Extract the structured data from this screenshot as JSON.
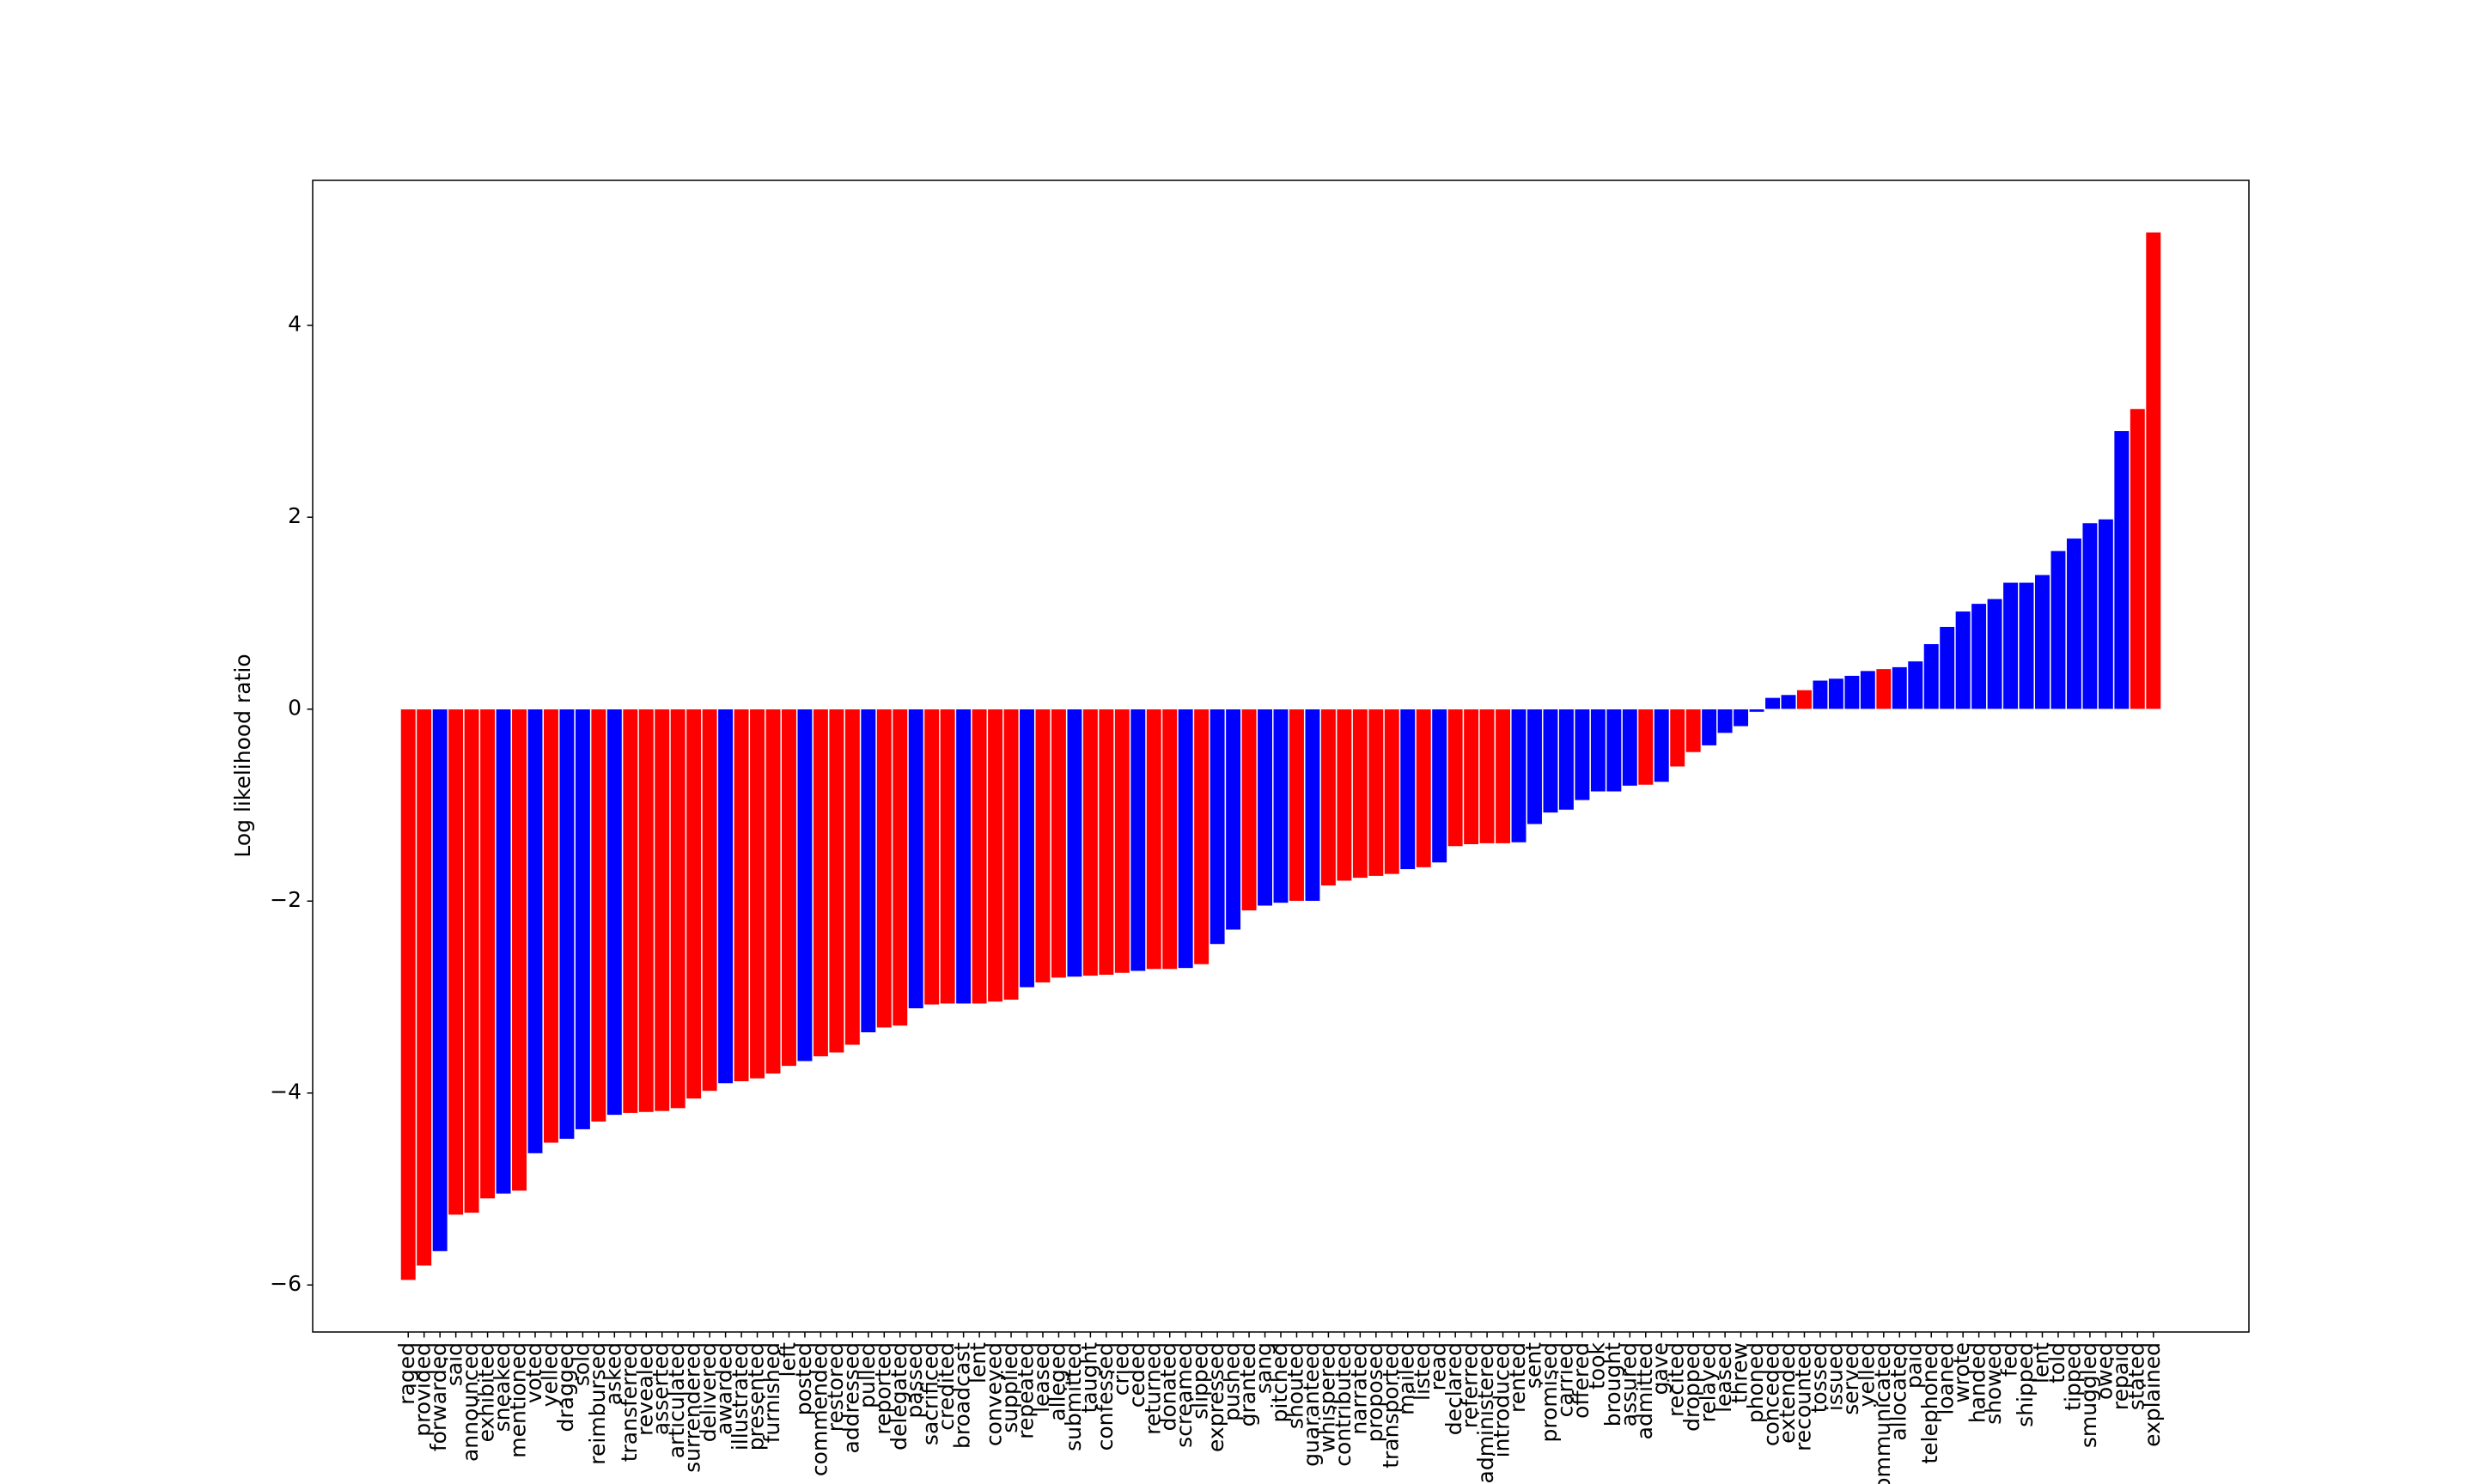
{
  "chart_data": {
    "type": "bar",
    "y_label": "Log likelihood ratio",
    "categories": [
      "raged",
      "provided",
      "forwarded",
      "said",
      "announced",
      "exhibited",
      "sneaked",
      "mentioned",
      "voted",
      "yelled",
      "dragged",
      "sold",
      "reimbursed",
      "asked",
      "transferred",
      "revealed",
      "asserted",
      "articulated",
      "surrendered",
      "delivered",
      "awarded",
      "illustrated",
      "presented",
      "furnished",
      "left",
      "posted",
      "commended",
      "restored",
      "addressed",
      "pulled",
      "reported",
      "delegated",
      "passed",
      "sacrificed",
      "credited",
      "broadcast",
      "lent",
      "conveyed",
      "supplied",
      "repeated",
      "leased",
      "alleged",
      "submitted",
      "taught",
      "confessed",
      "cried",
      "ceded",
      "returned",
      "donated",
      "screamed",
      "slipped",
      "expressed",
      "pushed",
      "granted",
      "sang",
      "pitched",
      "shouted",
      "guaranteed",
      "whispered",
      "contributed",
      "narrated",
      "proposed",
      "transported",
      "mailed",
      "listed",
      "read",
      "declared",
      "referred",
      "administered",
      "introduced",
      "rented",
      "sent",
      "promised",
      "carried",
      "offered",
      "took",
      "brought",
      "assured",
      "admitted",
      "gave",
      "recited",
      "dropped",
      "relayed",
      "leased",
      "threw",
      "phoned",
      "conceded",
      "extended",
      "recounted",
      "tossed",
      "issued",
      "served",
      "yelled",
      "communicated",
      "allocated",
      "paid",
      "telephoned",
      "loaned",
      "wrote",
      "handed",
      "showed",
      "fed",
      "shipped",
      "lent",
      "told",
      "tipped",
      "smuggled",
      "owed",
      "repaid",
      "stated",
      "explained"
    ],
    "values": [
      -5.95,
      -5.8,
      -5.65,
      -5.27,
      -5.25,
      -5.1,
      -5.05,
      -5.02,
      -4.63,
      -4.52,
      -4.48,
      -4.38,
      -4.3,
      -4.23,
      -4.21,
      -4.2,
      -4.19,
      -4.16,
      -4.06,
      -3.98,
      -3.9,
      -3.88,
      -3.85,
      -3.8,
      -3.72,
      -3.67,
      -3.62,
      -3.58,
      -3.5,
      -3.37,
      -3.32,
      -3.3,
      -3.12,
      -3.08,
      -3.07,
      -3.07,
      -3.07,
      -3.05,
      -3.03,
      -2.9,
      -2.85,
      -2.8,
      -2.79,
      -2.78,
      -2.77,
      -2.75,
      -2.73,
      -2.71,
      -2.71,
      -2.7,
      -2.66,
      -2.45,
      -2.3,
      -2.1,
      -2.05,
      -2.02,
      -2.0,
      -2.0,
      -1.84,
      -1.79,
      -1.76,
      -1.74,
      -1.72,
      -1.67,
      -1.65,
      -1.6,
      -1.43,
      -1.41,
      -1.4,
      -1.4,
      -1.39,
      -1.2,
      -1.08,
      -1.05,
      -0.95,
      -0.86,
      -0.86,
      -0.8,
      -0.79,
      -0.76,
      -0.6,
      -0.45,
      -0.38,
      -0.25,
      -0.18,
      -0.03,
      0.12,
      0.15,
      0.2,
      0.3,
      0.32,
      0.35,
      0.4,
      0.42,
      0.44,
      0.5,
      0.68,
      0.86,
      1.02,
      1.1,
      1.15,
      1.32,
      1.32,
      1.4,
      1.65,
      1.78,
      1.94,
      1.98,
      2.9,
      3.13,
      4.97
    ],
    "colors": [
      "#ff0000",
      "#ff0000",
      "#0000ff",
      "#ff0000",
      "#ff0000",
      "#ff0000",
      "#0000ff",
      "#ff0000",
      "#0000ff",
      "#ff0000",
      "#0000ff",
      "#0000ff",
      "#ff0000",
      "#0000ff",
      "#ff0000",
      "#ff0000",
      "#ff0000",
      "#ff0000",
      "#ff0000",
      "#ff0000",
      "#0000ff",
      "#ff0000",
      "#ff0000",
      "#ff0000",
      "#ff0000",
      "#0000ff",
      "#ff0000",
      "#ff0000",
      "#ff0000",
      "#0000ff",
      "#ff0000",
      "#ff0000",
      "#0000ff",
      "#ff0000",
      "#ff0000",
      "#0000ff",
      "#ff0000",
      "#ff0000",
      "#ff0000",
      "#0000ff",
      "#ff0000",
      "#ff0000",
      "#0000ff",
      "#ff0000",
      "#ff0000",
      "#ff0000",
      "#0000ff",
      "#ff0000",
      "#ff0000",
      "#0000ff",
      "#ff0000",
      "#0000ff",
      "#0000ff",
      "#ff0000",
      "#0000ff",
      "#0000ff",
      "#ff0000",
      "#0000ff",
      "#ff0000",
      "#ff0000",
      "#ff0000",
      "#ff0000",
      "#ff0000",
      "#0000ff",
      "#ff0000",
      "#0000ff",
      "#ff0000",
      "#ff0000",
      "#ff0000",
      "#ff0000",
      "#0000ff",
      "#0000ff",
      "#0000ff",
      "#0000ff",
      "#0000ff",
      "#0000ff",
      "#0000ff",
      "#0000ff",
      "#ff0000",
      "#0000ff",
      "#ff0000",
      "#ff0000",
      "#0000ff",
      "#0000ff",
      "#0000ff",
      "#0000ff",
      "#0000ff",
      "#0000ff",
      "#ff0000",
      "#0000ff",
      "#0000ff",
      "#0000ff",
      "#0000ff",
      "#ff0000",
      "#0000ff",
      "#0000ff",
      "#0000ff",
      "#0000ff",
      "#0000ff",
      "#0000ff",
      "#0000ff",
      "#0000ff",
      "#0000ff",
      "#0000ff",
      "#0000ff",
      "#0000ff",
      "#0000ff",
      "#0000ff",
      "#0000ff",
      "#ff0000",
      "#ff0000"
    ],
    "ylim": [
      -6.49,
      5.51
    ],
    "yticks": [
      {
        "value": -6,
        "label": "−6"
      },
      {
        "value": -4,
        "label": "−4"
      },
      {
        "value": -2,
        "label": "−2"
      },
      0,
      2,
      4
    ]
  }
}
